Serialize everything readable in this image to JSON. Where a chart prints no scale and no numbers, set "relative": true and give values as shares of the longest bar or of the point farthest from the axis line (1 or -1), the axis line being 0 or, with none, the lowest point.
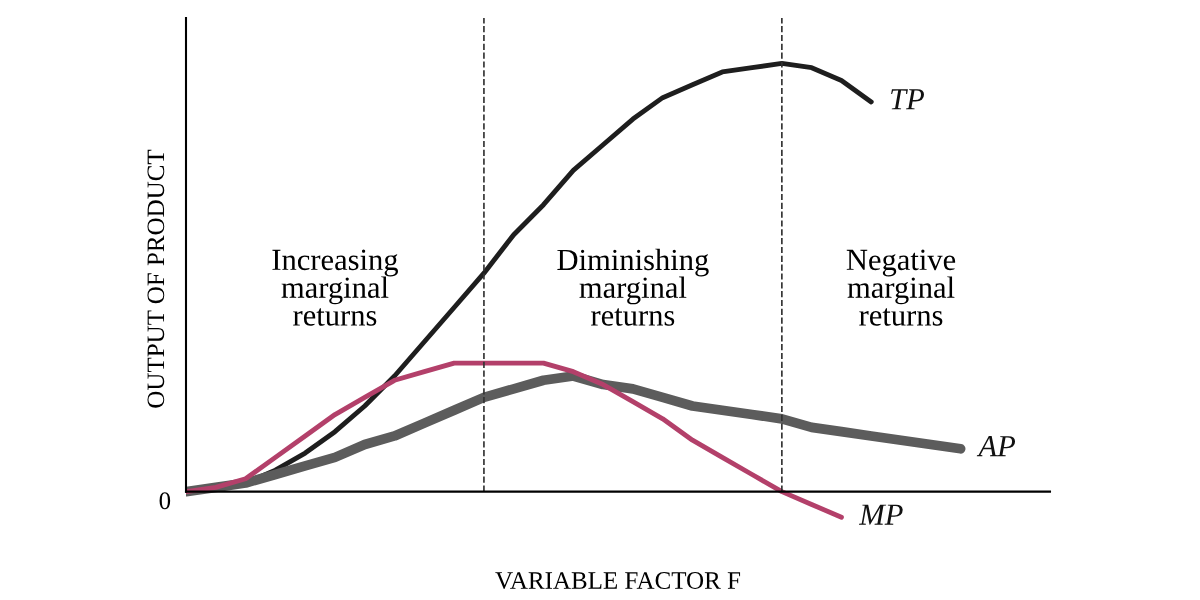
{
  "chart_data": {
    "type": "line",
    "relative": true,
    "xlabel": "VARIABLE FACTOR F",
    "ylabel": "OUTPUT OF PRODUCT",
    "categories": [
      null,
      null,
      null,
      null,
      null,
      null,
      null,
      null,
      null,
      null,
      null,
      null,
      null,
      null,
      null,
      null,
      null,
      null,
      null,
      null,
      null,
      null,
      null,
      null,
      null,
      null,
      null
    ],
    "series": [
      {
        "name": "TP",
        "color": "#1e1e1e",
        "values": [
          0,
          0.01,
          0.02,
          0.05,
          0.09,
          0.14,
          0.2,
          0.27,
          0.35,
          0.43,
          0.51,
          0.6,
          0.67,
          0.75,
          0.81,
          0.87,
          0.92,
          0.95,
          0.98,
          0.99,
          1,
          0.99,
          0.96,
          0.91,
          null,
          null,
          null
        ]
      },
      {
        "name": "AP",
        "color": "#5c5c5c",
        "values": [
          0,
          0.01,
          0.02,
          0.04,
          0.06,
          0.08,
          0.11,
          0.13,
          0.16,
          0.19,
          0.22,
          0.24,
          0.26,
          0.27,
          0.25,
          0.24,
          0.22,
          0.2,
          0.19,
          0.18,
          0.17,
          0.15,
          0.14,
          0.13,
          0.12,
          0.11,
          0.1
        ]
      },
      {
        "name": "MP",
        "color": "#b3406a",
        "values": [
          0,
          0.01,
          0.03,
          0.08,
          0.13,
          0.18,
          0.22,
          0.26,
          0.28,
          0.3,
          0.3,
          0.3,
          0.3,
          0.28,
          0.25,
          0.21,
          0.17,
          0.12,
          0.08,
          0.04,
          0,
          -0.03,
          -0.06,
          null,
          null,
          null,
          null
        ]
      }
    ],
    "annotations": [
      "Increasing\nmarginal\nreturns",
      "Diminishing\nmarginal\nreturns",
      "Negative\nmarginal\nreturns",
      "0"
    ],
    "legend": false,
    "marker": "none",
    "line_style": "solid"
  }
}
